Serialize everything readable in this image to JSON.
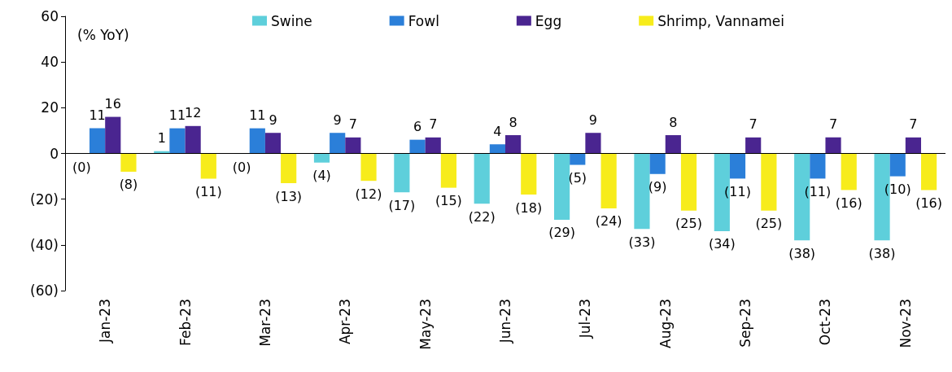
{
  "chart_data": {
    "type": "bar",
    "ylabel": "(% YoY)",
    "categories": [
      "Jan-23",
      "Feb-23",
      "Mar-23",
      "Apr-23",
      "May-23",
      "Jun-23",
      "Jul-23",
      "Aug-23",
      "Sep-23",
      "Oct-23",
      "Nov-23"
    ],
    "series": [
      {
        "name": "Swine",
        "color": "#5ecfdb",
        "values": [
          -0.2,
          1,
          -0.2,
          -4,
          -17,
          -22,
          -29,
          -33,
          -34,
          -38,
          -38
        ],
        "value_labels": [
          "(0)",
          "1",
          "(0)",
          "(4)",
          "(17)",
          "(22)",
          "(29)",
          "(33)",
          "(34)",
          "(38)",
          "(38)"
        ]
      },
      {
        "name": "Fowl",
        "color": "#2b7fd9",
        "values": [
          11,
          11,
          11,
          9,
          6,
          4,
          -5,
          -9,
          -11,
          -11,
          -10
        ],
        "value_labels": [
          "11",
          "11",
          "11",
          "9",
          "6",
          "4",
          "(5)",
          "(9)",
          "(11)",
          "(11)",
          "(10)"
        ]
      },
      {
        "name": "Egg",
        "color": "#4a2590",
        "values": [
          16,
          12,
          9,
          7,
          7,
          8,
          9,
          8,
          7,
          7,
          7
        ],
        "value_labels": [
          "16",
          "12",
          "9",
          "7",
          "7",
          "8",
          "9",
          "8",
          "7",
          "7",
          "7"
        ]
      },
      {
        "name": "Shrimp, Vannamei",
        "color": "#f7ec1b",
        "values": [
          -8,
          -11,
          -13,
          -12,
          -15,
          -18,
          -24,
          -25,
          -25,
          -16,
          -16
        ],
        "value_labels": [
          "(8)",
          "(11)",
          "(13)",
          "(12)",
          "(15)",
          "(18)",
          "(24)",
          "(25)",
          "(25)",
          "(16)",
          "(16)"
        ]
      }
    ],
    "ylim": [
      -60,
      60
    ],
    "yticks": [
      {
        "value": -60,
        "label": "(60)"
      },
      {
        "value": -40,
        "label": "(40)"
      },
      {
        "value": -20,
        "label": "(20)"
      },
      0,
      20,
      40,
      60
    ],
    "ref_lines": [
      {
        "axis": "y",
        "value": 0,
        "color": "#000000"
      }
    ],
    "grid": false,
    "legend": "top"
  }
}
